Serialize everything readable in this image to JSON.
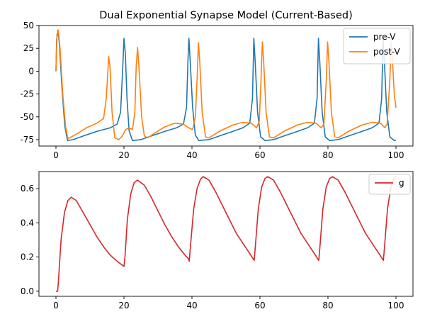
{
  "chart_data": [
    {
      "type": "line",
      "title": "Dual Exponential Synapse Model (Current-Based)",
      "xlabel": "",
      "ylabel": "",
      "xlim": [
        -5,
        105
      ],
      "ylim": [
        -82,
        50
      ],
      "xticks": [
        0,
        20,
        40,
        60,
        80,
        100
      ],
      "yticks": [
        -75,
        -50,
        -25,
        0,
        25,
        50
      ],
      "legend_position": "top-right",
      "grid": false,
      "series": [
        {
          "name": "pre-V",
          "color": "#1f77b4",
          "points": [
            [
              0,
              0
            ],
            [
              0.2,
              35
            ],
            [
              0.6,
              45
            ],
            [
              1.0,
              30
            ],
            [
              1.8,
              -20
            ],
            [
              2.6,
              -60
            ],
            [
              3.4,
              -76
            ],
            [
              5,
              -75
            ],
            [
              8,
              -71
            ],
            [
              12,
              -66
            ],
            [
              16,
              -62
            ],
            [
              18,
              -58
            ],
            [
              19,
              -45
            ],
            [
              19.6,
              0
            ],
            [
              20,
              36
            ],
            [
              20.4,
              20
            ],
            [
              20.9,
              -30
            ],
            [
              21.5,
              -65
            ],
            [
              22.5,
              -76
            ],
            [
              25,
              -75
            ],
            [
              28,
              -71
            ],
            [
              32,
              -66
            ],
            [
              35.5,
              -62
            ],
            [
              37.5,
              -58
            ],
            [
              38.4,
              -40
            ],
            [
              38.9,
              20
            ],
            [
              39.1,
              36
            ],
            [
              39.5,
              10
            ],
            [
              40.2,
              -40
            ],
            [
              41,
              -70
            ],
            [
              42,
              -76
            ],
            [
              45,
              -75
            ],
            [
              48,
              -71
            ],
            [
              52,
              -66
            ],
            [
              55,
              -62
            ],
            [
              57,
              -57
            ],
            [
              57.8,
              -30
            ],
            [
              58.2,
              36
            ],
            [
              58.6,
              10
            ],
            [
              59.3,
              -45
            ],
            [
              60.2,
              -72
            ],
            [
              61.5,
              -76
            ],
            [
              64,
              -75
            ],
            [
              67,
              -71
            ],
            [
              71,
              -66
            ],
            [
              74,
              -62
            ],
            [
              76,
              -57
            ],
            [
              76.8,
              -30
            ],
            [
              77.2,
              36
            ],
            [
              77.6,
              10
            ],
            [
              78.3,
              -45
            ],
            [
              79.2,
              -72
            ],
            [
              80.5,
              -76
            ],
            [
              83,
              -75
            ],
            [
              86,
              -71
            ],
            [
              90,
              -66
            ],
            [
              93,
              -62
            ],
            [
              95,
              -57
            ],
            [
              95.8,
              -30
            ],
            [
              96.2,
              36
            ],
            [
              96.6,
              10
            ],
            [
              97.3,
              -45
            ],
            [
              98.2,
              -72
            ],
            [
              99.5,
              -76
            ],
            [
              100,
              -75.5
            ]
          ]
        },
        {
          "name": "post-V",
          "color": "#ff7f0e",
          "points": [
            [
              0,
              0
            ],
            [
              0.3,
              40
            ],
            [
              0.7,
              45
            ],
            [
              1.2,
              25
            ],
            [
              2,
              -25
            ],
            [
              2.8,
              -60
            ],
            [
              3.5,
              -74
            ],
            [
              6,
              -69
            ],
            [
              9,
              -62
            ],
            [
              12,
              -57
            ],
            [
              14,
              -52
            ],
            [
              14.8,
              -30
            ],
            [
              15.2,
              -5
            ],
            [
              15.5,
              16
            ],
            [
              15.9,
              5
            ],
            [
              16.5,
              -45
            ],
            [
              17.3,
              -73
            ],
            [
              18.5,
              -75
            ],
            [
              19.5,
              -71
            ],
            [
              20.5,
              -64
            ],
            [
              21.5,
              -62
            ],
            [
              22.5,
              -64
            ],
            [
              23.2,
              -45
            ],
            [
              23.6,
              5
            ],
            [
              24,
              26
            ],
            [
              24.4,
              5
            ],
            [
              25.2,
              -50
            ],
            [
              26,
              -71
            ],
            [
              27,
              -73
            ],
            [
              29,
              -68
            ],
            [
              32,
              -61
            ],
            [
              35,
              -57
            ],
            [
              37.5,
              -58
            ],
            [
              39,
              -62
            ],
            [
              40.2,
              -64
            ],
            [
              41,
              -50
            ],
            [
              41.5,
              -10
            ],
            [
              41.9,
              31
            ],
            [
              42.3,
              10
            ],
            [
              43,
              -45
            ],
            [
              44,
              -72
            ],
            [
              45,
              -73
            ],
            [
              48,
              -66
            ],
            [
              52,
              -59
            ],
            [
              55,
              -56
            ],
            [
              57.5,
              -57
            ],
            [
              59,
              -62
            ],
            [
              59.8,
              -55
            ],
            [
              60.3,
              -10
            ],
            [
              60.7,
              32
            ],
            [
              61.1,
              10
            ],
            [
              61.8,
              -45
            ],
            [
              62.8,
              -72
            ],
            [
              64,
              -73
            ],
            [
              67,
              -66
            ],
            [
              71,
              -59
            ],
            [
              74,
              -56
            ],
            [
              76.5,
              -57
            ],
            [
              78,
              -62
            ],
            [
              78.8,
              -58
            ],
            [
              79.5,
              -10
            ],
            [
              79.9,
              32
            ],
            [
              80.3,
              10
            ],
            [
              81,
              -45
            ],
            [
              82,
              -72
            ],
            [
              83,
              -73
            ],
            [
              86,
              -66
            ],
            [
              90,
              -59
            ],
            [
              93,
              -56
            ],
            [
              95.5,
              -57
            ],
            [
              96.7,
              -62
            ],
            [
              97.4,
              -58
            ],
            [
              98.2,
              -10
            ],
            [
              98.6,
              32
            ],
            [
              99,
              10
            ],
            [
              99.5,
              -25
            ],
            [
              100,
              -40
            ]
          ]
        }
      ]
    },
    {
      "type": "line",
      "title": "",
      "xlabel": "",
      "ylabel": "",
      "xlim": [
        -5,
        105
      ],
      "ylim": [
        -0.03,
        0.7
      ],
      "xticks": [
        0,
        20,
        40,
        60,
        80,
        100
      ],
      "yticks": [
        0.0,
        0.2,
        0.4,
        0.6
      ],
      "legend_position": "top-right",
      "grid": false,
      "series": [
        {
          "name": "g",
          "color": "#d62728",
          "points": [
            [
              0,
              0
            ],
            [
              0.5,
              0
            ],
            [
              0.7,
              0.05
            ],
            [
              1.5,
              0.3
            ],
            [
              2.5,
              0.46
            ],
            [
              3.5,
              0.53
            ],
            [
              4.5,
              0.55
            ],
            [
              6,
              0.53
            ],
            [
              8,
              0.46
            ],
            [
              10,
              0.39
            ],
            [
              12,
              0.32
            ],
            [
              14,
              0.26
            ],
            [
              16,
              0.21
            ],
            [
              18,
              0.175
            ],
            [
              20,
              0.145
            ],
            [
              20.3,
              0.2
            ],
            [
              21,
              0.42
            ],
            [
              22,
              0.57
            ],
            [
              23,
              0.635
            ],
            [
              24,
              0.65
            ],
            [
              26,
              0.62
            ],
            [
              28,
              0.55
            ],
            [
              30,
              0.47
            ],
            [
              32,
              0.39
            ],
            [
              34,
              0.32
            ],
            [
              36,
              0.26
            ],
            [
              38,
              0.21
            ],
            [
              39,
              0.19
            ],
            [
              39.2,
              0.175
            ],
            [
              39.5,
              0.25
            ],
            [
              40.5,
              0.48
            ],
            [
              41.5,
              0.6
            ],
            [
              42.5,
              0.655
            ],
            [
              43.3,
              0.67
            ],
            [
              45,
              0.65
            ],
            [
              47,
              0.58
            ],
            [
              49,
              0.5
            ],
            [
              51,
              0.42
            ],
            [
              53,
              0.34
            ],
            [
              55,
              0.28
            ],
            [
              57,
              0.22
            ],
            [
              58.3,
              0.18
            ],
            [
              58.6,
              0.25
            ],
            [
              59.5,
              0.48
            ],
            [
              60.5,
              0.61
            ],
            [
              61.5,
              0.66
            ],
            [
              62.3,
              0.67
            ],
            [
              64,
              0.65
            ],
            [
              66,
              0.58
            ],
            [
              68,
              0.5
            ],
            [
              70,
              0.42
            ],
            [
              72,
              0.34
            ],
            [
              74,
              0.28
            ],
            [
              76,
              0.22
            ],
            [
              77.3,
              0.18
            ],
            [
              77.6,
              0.25
            ],
            [
              78.5,
              0.48
            ],
            [
              79.5,
              0.61
            ],
            [
              80.5,
              0.66
            ],
            [
              81.3,
              0.67
            ],
            [
              83,
              0.65
            ],
            [
              85,
              0.58
            ],
            [
              87,
              0.5
            ],
            [
              89,
              0.42
            ],
            [
              91,
              0.34
            ],
            [
              93,
              0.28
            ],
            [
              95,
              0.22
            ],
            [
              96.3,
              0.18
            ],
            [
              96.6,
              0.25
            ],
            [
              97.5,
              0.48
            ],
            [
              98.5,
              0.61
            ],
            [
              99.5,
              0.66
            ],
            [
              100,
              0.67
            ]
          ]
        }
      ]
    }
  ]
}
